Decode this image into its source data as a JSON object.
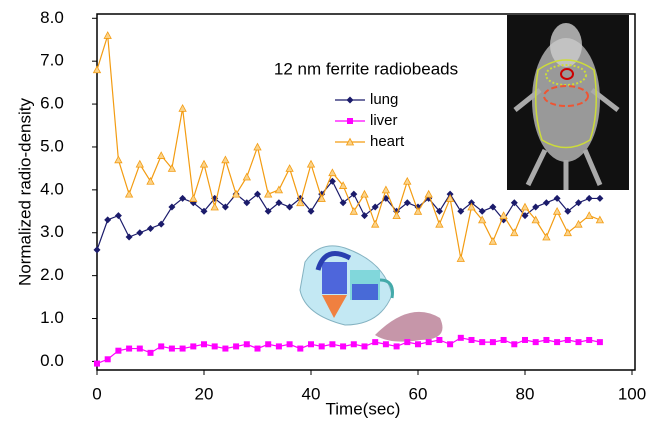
{
  "chart_data": {
    "type": "line",
    "title": "12 nm ferrite radiobeads",
    "x_label": "Time(sec)",
    "y_label": "Normalized radio-density",
    "x": [
      0,
      2,
      4,
      6,
      8,
      10,
      12,
      14,
      16,
      18,
      20,
      22,
      24,
      26,
      28,
      30,
      32,
      34,
      36,
      38,
      40,
      42,
      44,
      46,
      48,
      50,
      52,
      54,
      56,
      58,
      60,
      62,
      64,
      66,
      68,
      70,
      72,
      74,
      76,
      78,
      80,
      82,
      84,
      86,
      88,
      90,
      92,
      94
    ],
    "series": [
      {
        "name": "lung",
        "color": "#1b1b6b",
        "marker": "diamond",
        "values": [
          2.6,
          3.3,
          3.4,
          2.9,
          3.0,
          3.1,
          3.2,
          3.6,
          3.8,
          3.7,
          3.5,
          3.8,
          3.6,
          3.9,
          3.7,
          3.9,
          3.5,
          3.7,
          3.6,
          3.8,
          3.5,
          3.9,
          4.2,
          3.7,
          3.9,
          3.4,
          3.6,
          3.8,
          3.5,
          3.7,
          3.6,
          3.8,
          3.5,
          3.9,
          3.5,
          3.7,
          3.5,
          3.6,
          3.3,
          3.7,
          3.4,
          3.6,
          3.7,
          3.8,
          3.5,
          3.7,
          3.8,
          3.8
        ]
      },
      {
        "name": "liver",
        "color": "#ff00ff",
        "marker": "square",
        "values": [
          -0.05,
          0.05,
          0.25,
          0.3,
          0.3,
          0.2,
          0.35,
          0.3,
          0.3,
          0.35,
          0.4,
          0.35,
          0.3,
          0.35,
          0.4,
          0.3,
          0.4,
          0.35,
          0.4,
          0.3,
          0.4,
          0.35,
          0.4,
          0.35,
          0.4,
          0.35,
          0.45,
          0.4,
          0.35,
          0.45,
          0.4,
          0.45,
          0.5,
          0.4,
          0.55,
          0.5,
          0.45,
          0.45,
          0.5,
          0.4,
          0.5,
          0.45,
          0.5,
          0.45,
          0.5,
          0.45,
          0.5,
          0.45
        ]
      },
      {
        "name": "heart",
        "color": "#f39c12",
        "marker": "triangle",
        "values": [
          6.8,
          7.6,
          4.7,
          3.9,
          4.6,
          4.2,
          4.8,
          4.5,
          5.9,
          3.8,
          4.6,
          3.6,
          4.7,
          3.9,
          4.3,
          5.0,
          3.9,
          4.0,
          4.5,
          3.7,
          4.6,
          3.8,
          4.4,
          4.1,
          3.5,
          3.9,
          3.2,
          4.0,
          3.4,
          4.2,
          3.5,
          3.9,
          3.2,
          3.8,
          2.4,
          3.6,
          3.3,
          2.8,
          3.4,
          3.0,
          3.6,
          3.3,
          2.9,
          3.5,
          3.0,
          3.2,
          3.4,
          3.3
        ]
      }
    ],
    "xlim": [
      0,
      100
    ],
    "xticks": [
      0,
      20,
      40,
      60,
      80,
      100
    ],
    "ylim": [
      -0.2,
      8.1
    ],
    "yticks": [
      {
        "value": 0,
        "label": "0.0"
      },
      {
        "value": 1,
        "label": "1.0"
      },
      {
        "value": 2,
        "label": "2.0"
      },
      {
        "value": 3,
        "label": "3.0"
      },
      {
        "value": 4,
        "label": "4.0"
      },
      {
        "value": 5,
        "label": "5.0"
      },
      {
        "value": 6,
        "label": "6.0"
      },
      {
        "value": 7,
        "label": "7.0"
      },
      {
        "value": 8,
        "label": "8.0"
      }
    ],
    "grid": false
  }
}
